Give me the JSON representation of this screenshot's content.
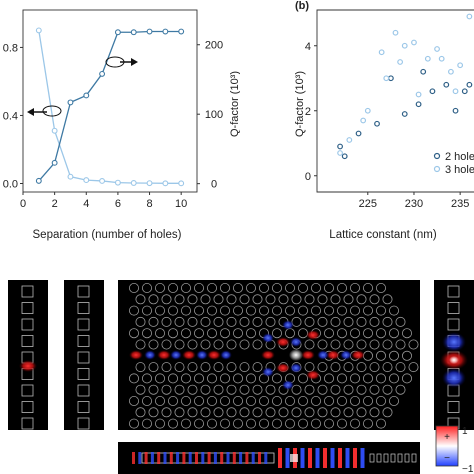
{
  "chart_data": [
    {
      "type": "line",
      "panel_label": "",
      "xlabel": "Separation (number of holes)",
      "ylabel_left": "",
      "ylabel_right": "Q-factor (10³)",
      "xlim": [
        0,
        11
      ],
      "ylim_left": [
        -0.05,
        1.02
      ],
      "ylim_right": [
        -12,
        250
      ],
      "x_ticks": [
        "0",
        "2",
        "4",
        "6",
        "8",
        "10"
      ],
      "y_left_ticks": [
        "0.0",
        "0.4",
        "0.8"
      ],
      "y_right_ticks": [
        "0",
        "100",
        "200"
      ],
      "x": [
        1,
        2,
        3,
        4,
        5,
        6,
        7,
        8,
        9,
        10
      ],
      "series": [
        {
          "name": "",
          "axis": "left",
          "color": "#9cc7e8",
          "values": [
            0.9,
            0.31,
            0.04,
            0.02,
            0.015,
            0.005,
            0.003,
            0.002,
            0.001,
            0.001
          ]
        },
        {
          "name": "",
          "axis": "right",
          "color": "#3e79a3",
          "values": [
            4,
            30,
            117,
            127,
            158,
            218,
            218,
            219,
            219,
            219
          ]
        }
      ],
      "grid": false
    },
    {
      "type": "scatter",
      "panel_label": "(b)",
      "xlabel": "Lattice constant (nm)",
      "ylabel": "Q-factor (10³)",
      "xlim": [
        219.5,
        236.5
      ],
      "ylim": [
        -0.5,
        5.1
      ],
      "x_ticks": [
        "225",
        "230",
        "235"
      ],
      "y_ticks": [
        "0",
        "2",
        "4"
      ],
      "legend_position": "bottom-right",
      "series": [
        {
          "name": "2 holes",
          "color": "#2e5f86",
          "x": [
            222,
            222.5,
            224,
            226,
            227.5,
            229,
            230.5,
            231,
            232,
            233.5,
            234.5,
            235.5,
            236
          ],
          "y": [
            0.9,
            0.6,
            1.3,
            1.6,
            3.0,
            1.9,
            2.2,
            3.2,
            2.6,
            2.8,
            2.0,
            2.6,
            2.8
          ]
        },
        {
          "name": "3 holes",
          "color": "#9cc7e8",
          "x": [
            222,
            223,
            224.5,
            225,
            226.5,
            227,
            228,
            228.5,
            229,
            230,
            230.5,
            231.5,
            232.5,
            233,
            234,
            234.5,
            235,
            236
          ],
          "y": [
            0.7,
            1.1,
            1.7,
            2.0,
            3.8,
            3.0,
            4.4,
            3.5,
            4.0,
            4.1,
            2.5,
            3.6,
            3.9,
            3.6,
            3.2,
            2.6,
            3.4,
            4.9
          ]
        }
      ],
      "grid": false
    }
  ],
  "colorbar": {
    "plus": "+",
    "minus": "−",
    "max": "1",
    "min": "−1"
  },
  "colors": {
    "positive": "#ff2a2a",
    "negative": "#3b5bff",
    "background": "#000000"
  }
}
